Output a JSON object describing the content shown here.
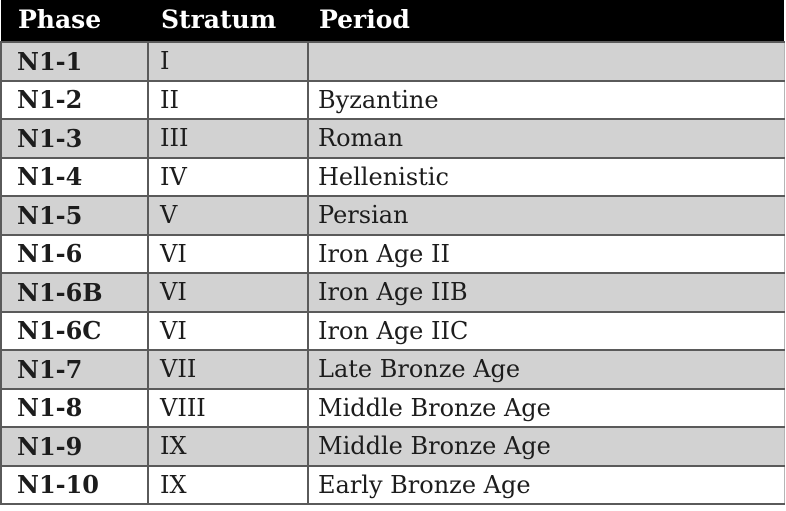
{
  "table": {
    "title": "stratigraphy-phase-table",
    "columns": [
      "Phase",
      "Stratum",
      "Period"
    ],
    "rows": [
      {
        "phase": "N1-1",
        "stratum": "I",
        "period": ""
      },
      {
        "phase": "N1-2",
        "stratum": "II",
        "period": "Byzantine"
      },
      {
        "phase": "N1-3",
        "stratum": "III",
        "period": "Roman"
      },
      {
        "phase": "N1-4",
        "stratum": "IV",
        "period": "Hellenistic"
      },
      {
        "phase": "N1-5",
        "stratum": "V",
        "period": "Persian"
      },
      {
        "phase": "N1-6",
        "stratum": "VI",
        "period": "Iron Age II"
      },
      {
        "phase": "N1-6B",
        "stratum": "VI",
        "period": "Iron Age IIB"
      },
      {
        "phase": "N1-6C",
        "stratum": "VI",
        "period": "Iron Age IIC"
      },
      {
        "phase": "N1-7",
        "stratum": "VII",
        "period": "Late Bronze Age"
      },
      {
        "phase": "N1-8",
        "stratum": "VIII",
        "period": "Middle Bronze Age"
      },
      {
        "phase": "N1-9",
        "stratum": "IX",
        "period": "Middle Bronze Age"
      },
      {
        "phase": "N1-10",
        "stratum": "IX",
        "period": "Early Bronze Age"
      }
    ],
    "colors": {
      "header_bg": "#000000",
      "header_text": "#ffffff",
      "row_bg": "#ffffff",
      "row_alt_bg": "#d2d2d2",
      "border": "#5a5a5a",
      "border_light": "#b5b5b5",
      "text": "#1c1c1c"
    }
  }
}
